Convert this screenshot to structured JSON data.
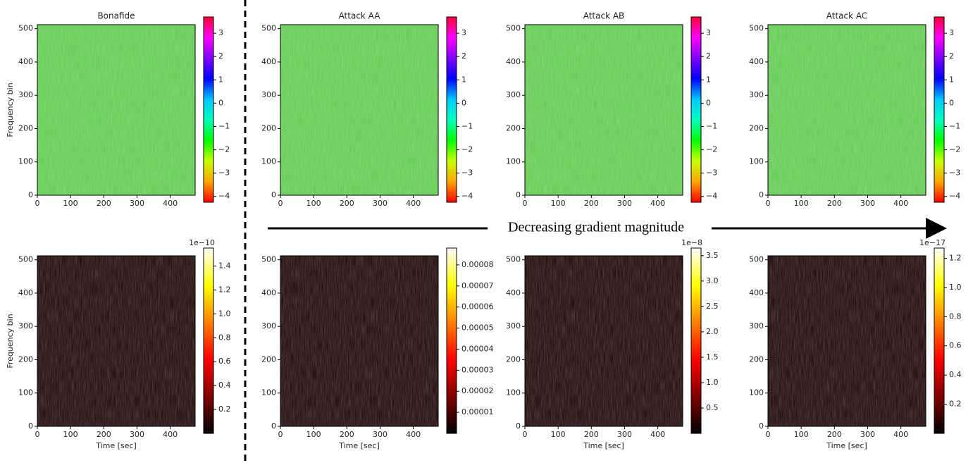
{
  "annotation": "Decreasing gradient magnitude",
  "chart_data": [
    {
      "type": "heatmap",
      "title": "Bonafide",
      "ylabel": "Frequency bin",
      "xlim": [
        0,
        475
      ],
      "xticks": [
        0,
        100,
        200,
        300,
        400
      ],
      "ylim": [
        0,
        512
      ],
      "yticks": [
        0,
        100,
        200,
        300,
        400,
        500
      ],
      "fill": "#63d651",
      "colorbar": {
        "lim": [
          -4.25,
          3.7
        ],
        "ticks": [
          {
            "value": -4,
            "label": "−4"
          },
          {
            "value": -3,
            "label": "−3"
          },
          {
            "value": -2,
            "label": "−2"
          },
          {
            "value": -1,
            "label": "−1"
          },
          0,
          1,
          2,
          3
        ],
        "colors": [
          "#ff0000",
          "#ffa500",
          "#c8ff00",
          "#00ff00",
          "#00ffc0",
          "#00c8ff",
          "#0000ff",
          "#8000ff",
          "#ff00ff",
          "#ff0030"
        ]
      }
    },
    {
      "type": "heatmap",
      "title": "Attack AA",
      "xlim": [
        0,
        475
      ],
      "xticks": [
        0,
        100,
        200,
        300,
        400
      ],
      "ylim": [
        0,
        512
      ],
      "yticks": [
        0,
        100,
        200,
        300,
        400,
        500
      ],
      "fill": "#63d651",
      "colorbar": {
        "lim": [
          -4.25,
          3.7
        ],
        "ticks": [
          {
            "value": -4,
            "label": "−4"
          },
          {
            "value": -3,
            "label": "−3"
          },
          {
            "value": -2,
            "label": "−2"
          },
          {
            "value": -1,
            "label": "−1"
          },
          0,
          1,
          2,
          3
        ],
        "colors": [
          "#ff0000",
          "#ffa500",
          "#c8ff00",
          "#00ff00",
          "#00ffc0",
          "#00c8ff",
          "#0000ff",
          "#8000ff",
          "#ff00ff",
          "#ff0030"
        ]
      }
    },
    {
      "type": "heatmap",
      "title": "Attack AB",
      "xlim": [
        0,
        475
      ],
      "xticks": [
        0,
        100,
        200,
        300,
        400
      ],
      "ylim": [
        0,
        512
      ],
      "yticks": [
        0,
        100,
        200,
        300,
        400,
        500
      ],
      "fill": "#63d651",
      "colorbar": {
        "lim": [
          -4.25,
          3.7
        ],
        "ticks": [
          {
            "value": -4,
            "label": "−4"
          },
          {
            "value": -3,
            "label": "−3"
          },
          {
            "value": -2,
            "label": "−2"
          },
          {
            "value": -1,
            "label": "−1"
          },
          0,
          1,
          2,
          3
        ],
        "colors": [
          "#ff0000",
          "#ffa500",
          "#c8ff00",
          "#00ff00",
          "#00ffc0",
          "#00c8ff",
          "#0000ff",
          "#8000ff",
          "#ff00ff",
          "#ff0030"
        ]
      }
    },
    {
      "type": "heatmap",
      "title": "Attack AC",
      "xlim": [
        0,
        475
      ],
      "xticks": [
        0,
        100,
        200,
        300,
        400
      ],
      "ylim": [
        0,
        512
      ],
      "yticks": [
        0,
        100,
        200,
        300,
        400,
        500
      ],
      "fill": "#63d651",
      "colorbar": {
        "lim": [
          -4.25,
          3.7
        ],
        "ticks": [
          {
            "value": -4,
            "label": "−4"
          },
          {
            "value": -3,
            "label": "−3"
          },
          {
            "value": -2,
            "label": "−2"
          },
          {
            "value": -1,
            "label": "−1"
          },
          0,
          1,
          2,
          3
        ],
        "colors": [
          "#ff0000",
          "#ffa500",
          "#c8ff00",
          "#00ff00",
          "#00ffc0",
          "#00c8ff",
          "#0000ff",
          "#8000ff",
          "#ff00ff",
          "#ff0030"
        ]
      }
    },
    {
      "type": "heatmap",
      "xlabel": "Time [sec]",
      "ylabel": "Frequency bin",
      "xlim": [
        0,
        475
      ],
      "xticks": [
        0,
        100,
        200,
        300,
        400
      ],
      "ylim": [
        0,
        512
      ],
      "yticks": [
        0,
        100,
        200,
        300,
        400,
        500
      ],
      "fill": "#1c0202",
      "colorbar": {
        "offset": "1e−10",
        "lim": [
          0,
          1.55
        ],
        "ticks": [
          0.2,
          0.4,
          0.6,
          0.8,
          {
            "value": 1,
            "label": "1.0"
          },
          1.2,
          1.4
        ],
        "colors": [
          "#000000",
          "#800000",
          "#ff0000",
          "#ff8000",
          "#ffff00",
          "#ffffff"
        ]
      }
    },
    {
      "type": "heatmap",
      "xlabel": "Time [sec]",
      "xlim": [
        0,
        475
      ],
      "xticks": [
        0,
        100,
        200,
        300,
        400
      ],
      "ylim": [
        0,
        512
      ],
      "yticks": [
        0,
        100,
        200,
        300,
        400,
        500
      ],
      "fill": "#1c0202",
      "colorbar": {
        "lim": [
          0,
          8.8e-05
        ],
        "ticks": [
          1e-05,
          2e-05,
          3e-05,
          4e-05,
          5e-05,
          6e-05,
          7e-05,
          8e-05
        ],
        "colors": [
          "#000000",
          "#800000",
          "#ff0000",
          "#ff8000",
          "#ffff00",
          "#ffffff"
        ]
      }
    },
    {
      "type": "heatmap",
      "xlabel": "Time [sec]",
      "xlim": [
        0,
        475
      ],
      "xticks": [
        0,
        100,
        200,
        300,
        400
      ],
      "ylim": [
        0,
        512
      ],
      "yticks": [
        0,
        100,
        200,
        300,
        400,
        500
      ],
      "fill": "#1c0202",
      "colorbar": {
        "offset": "1e−8",
        "lim": [
          0,
          3.65
        ],
        "ticks": [
          0.5,
          {
            "value": 1,
            "label": "1.0"
          },
          1.5,
          {
            "value": 2,
            "label": "2.0"
          },
          2.5,
          {
            "value": 3,
            "label": "3.0"
          },
          3.5
        ],
        "colors": [
          "#000000",
          "#800000",
          "#ff0000",
          "#ff8000",
          "#ffff00",
          "#ffffff"
        ]
      }
    },
    {
      "type": "heatmap",
      "xlabel": "Time [sec]",
      "xlim": [
        0,
        475
      ],
      "xticks": [
        0,
        100,
        200,
        300,
        400
      ],
      "ylim": [
        0,
        512
      ],
      "yticks": [
        0,
        100,
        200,
        300,
        400,
        500
      ],
      "fill": "#1c0202",
      "colorbar": {
        "offset": "1e−17",
        "lim": [
          0,
          1.27
        ],
        "ticks": [
          0.2,
          0.4,
          0.6,
          0.8,
          {
            "value": 1,
            "label": "1.0"
          },
          1.2
        ],
        "colors": [
          "#000000",
          "#800000",
          "#ff0000",
          "#ff8000",
          "#ffff00",
          "#ffffff"
        ]
      }
    }
  ]
}
